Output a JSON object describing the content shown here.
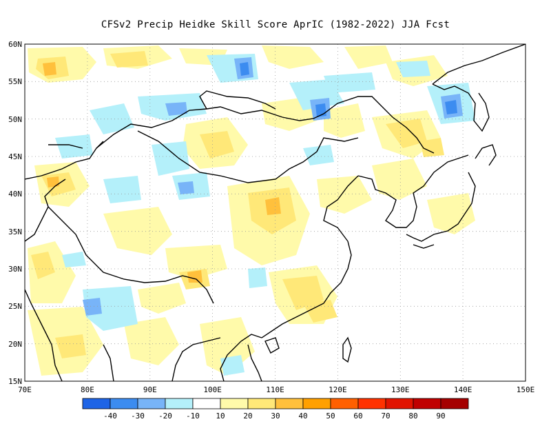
{
  "title": "CFSv2 Precip Heidke Skill Score AprIC (1982-2022) JJA Fcst",
  "map": {
    "lon_range": [
      70,
      150
    ],
    "lat_range": [
      15,
      60
    ],
    "lon_ticks": [
      "70E",
      "80E",
      "90E",
      "100E",
      "110E",
      "120E",
      "130E",
      "140E",
      "150E"
    ],
    "lat_ticks": [
      "15N",
      "20N",
      "25N",
      "30N",
      "35N",
      "40N",
      "45N",
      "50N",
      "55N",
      "60N"
    ],
    "gridlines": true
  },
  "colorbar": {
    "colors": [
      "#1e64e6",
      "#3c8cf0",
      "#78b4f8",
      "#b4f0fa",
      "#ffffff",
      "#fffaaa",
      "#ffe878",
      "#ffc03c",
      "#ffa000",
      "#ff6000",
      "#ff3200",
      "#e11400",
      "#c00000",
      "#a50000"
    ],
    "labels": [
      "-40",
      "-30",
      "-20",
      "-10",
      "10",
      "20",
      "30",
      "40",
      "50",
      "60",
      "70",
      "80",
      "90"
    ]
  },
  "legend_colors": {
    "blue_light": "#b4f0fa",
    "blue_mid": "#78b4f8",
    "blue_dark": "#3c8cf0",
    "yellow_light": "#fffaaa",
    "yellow_mid": "#ffe878",
    "orange": "#ffc03c"
  }
}
